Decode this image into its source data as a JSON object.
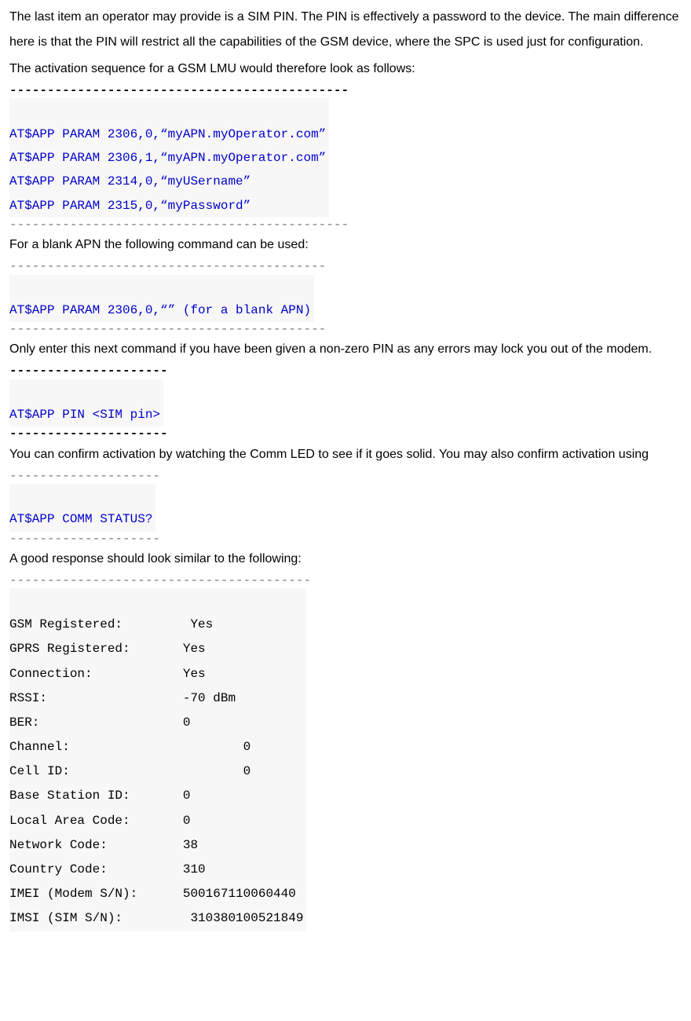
{
  "para": {
    "p1": "The last item an operator may provide is a SIM PIN. The PIN is effectively a password to the device. The main difference here is that the PIN will restrict all the capabilities of the GSM device, where the SPC is used just for configuration.",
    "p2": "The activation sequence for a GSM LMU would therefore look as follows:",
    "p3": "For a blank APN the following command can be used:",
    "p4": "Only enter this next command if you have been given a non-zero PIN as any errors may lock you out of the modem.",
    "p5": "You can confirm activation by watching the Comm LED to see if it goes solid. You may also confirm activation using",
    "p6": "A good response should look similar to the following:"
  },
  "code": {
    "activation": "\nAT$APP PARAM 2306,0,“myAPN.myOperator.com”\nAT$APP PARAM 2306,1,“myAPN.myOperator.com”\nAT$APP PARAM 2314,0,“myUSername”\nAT$APP PARAM 2315,0,“myPassword”",
    "blank_apn": "\nAT$APP PARAM 2306,0,“” (for a blank APN)",
    "pin": "\nAT$APP PIN <SIM pin>",
    "comm_status": "\nAT$APP COMM STATUS?"
  },
  "dashes": {
    "d45b": "---------------------------------------------",
    "d45": "---------------------------------------------",
    "d42": "------------------------------------------",
    "d21b": "---------------------",
    "d20": "--------------------",
    "d40": "----------------------------------------"
  },
  "status": {
    "gsm_registered": "GSM Registered:         Yes",
    "gprs_registered": "GPRS Registered:       Yes",
    "connection": "Connection:            Yes",
    "rssi": "RSSI:                  -70 dBm",
    "ber": "BER:                   0",
    "channel": "Channel:                       0",
    "cell_id": "Cell ID:                       0",
    "base_station": "Base Station ID:       0",
    "lac": "Local Area Code:       0",
    "network_code": "Network Code:          38",
    "country_code": "Country Code:          310",
    "imei": "IMEI (Modem S/N):      500167110060440",
    "imsi": "IMSI (SIM S/N):         310380100521849"
  }
}
